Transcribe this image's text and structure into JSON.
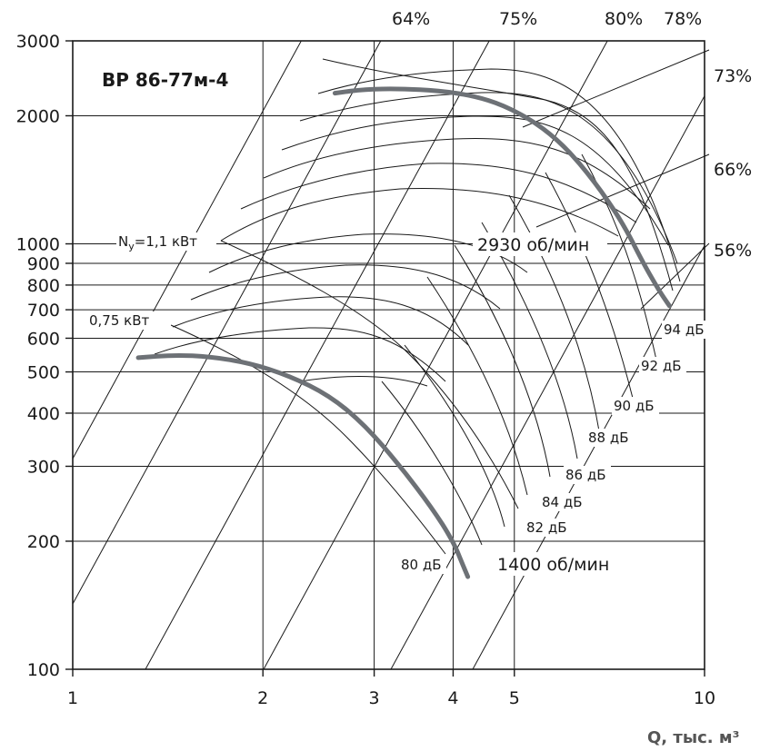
{
  "chart_data": {
    "type": "line",
    "title": "ВР 86-77м-4",
    "xlabel": "Q, тыс. м³",
    "x_scale": "log",
    "y_scale": "log",
    "xlim": [
      1,
      10
    ],
    "ylim": [
      100,
      3000
    ],
    "x_ticks": [
      {
        "value": 1,
        "label": "1"
      },
      {
        "value": 2,
        "label": "2"
      },
      {
        "value": 3,
        "label": "3"
      },
      {
        "value": 4,
        "label": "4"
      },
      {
        "value": 5,
        "label": "5"
      },
      {
        "value": 10,
        "label": "10"
      }
    ],
    "y_ticks": [
      {
        "value": 100,
        "label": "100"
      },
      {
        "value": 200,
        "label": "200"
      },
      {
        "value": 300,
        "label": "300"
      },
      {
        "value": 400,
        "label": "400"
      },
      {
        "value": 500,
        "label": "500"
      },
      {
        "value": 600,
        "label": "600"
      },
      {
        "value": 700,
        "label": "700"
      },
      {
        "value": 800,
        "label": "800"
      },
      {
        "value": 900,
        "label": "900"
      },
      {
        "value": 1000,
        "label": "1000"
      },
      {
        "value": 2000,
        "label": "2000"
      },
      {
        "value": 3000,
        "label": "3000"
      }
    ],
    "grid": true,
    "series": [
      {
        "name": "2930 об/мин",
        "color": "#6d7176",
        "points": [
          [
            2.6,
            2260
          ],
          [
            2.9,
            2310
          ],
          [
            3.3,
            2315
          ],
          [
            3.8,
            2290
          ],
          [
            4.3,
            2230
          ],
          [
            4.8,
            2120
          ],
          [
            5.4,
            1930
          ],
          [
            6.0,
            1700
          ],
          [
            6.7,
            1400
          ],
          [
            7.4,
            1130
          ],
          [
            8.0,
            900
          ],
          [
            8.5,
            770
          ],
          [
            8.8,
            715
          ]
        ]
      },
      {
        "name": "1400 об/мин",
        "color": "#6d7176",
        "points": [
          [
            1.27,
            540
          ],
          [
            1.45,
            548
          ],
          [
            1.65,
            543
          ],
          [
            1.9,
            525
          ],
          [
            2.2,
            490
          ],
          [
            2.55,
            440
          ],
          [
            2.9,
            375
          ],
          [
            3.3,
            300
          ],
          [
            3.7,
            240
          ],
          [
            4.0,
            200
          ],
          [
            4.15,
            175
          ],
          [
            4.22,
            165
          ]
        ]
      }
    ],
    "annotations": [
      {
        "text": "ВР 86-77м-4",
        "role": "model"
      },
      {
        "text": "2930 об/мин",
        "x": 5.6,
        "y": 980
      },
      {
        "text": "1400 об/мин",
        "x": 5.1,
        "y": 178
      }
    ],
    "efficiency_labels": [
      "64%",
      "75%",
      "80%",
      "78%",
      "73%",
      "66%",
      "56%"
    ],
    "power_labels": [
      "Nу=1,1 кВт",
      "0,75 кВт"
    ],
    "noise_labels": [
      "94 дБ",
      "92 дБ",
      "90 дБ",
      "88 дБ",
      "86 дБ",
      "84 дБ",
      "82 дБ",
      "80 дБ"
    ]
  }
}
